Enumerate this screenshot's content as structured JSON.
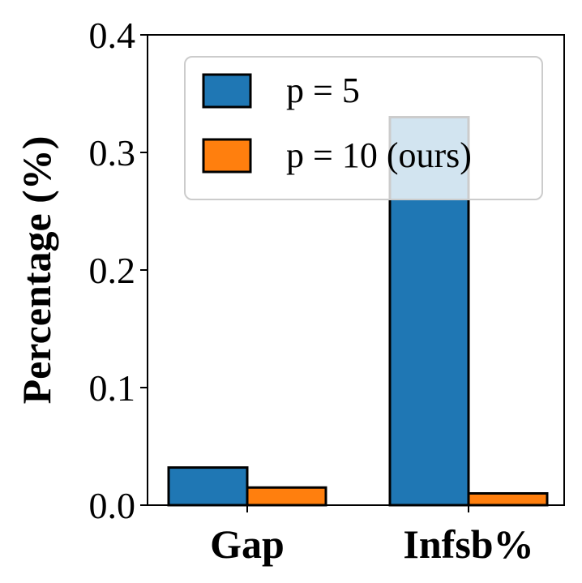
{
  "chart_data": {
    "type": "bar",
    "title": "",
    "xlabel": "",
    "ylabel": "Percentage (%)",
    "categories": [
      "Gap",
      "Infsb%"
    ],
    "series": [
      {
        "name": "p = 5",
        "color": "#1f77b4",
        "values": [
          0.032,
          0.33
        ]
      },
      {
        "name": "p = 10 (ours)",
        "color": "#ff7f0e",
        "values": [
          0.015,
          0.01
        ]
      }
    ],
    "ylim": [
      0.0,
      0.4
    ],
    "yticks": [
      "0.0",
      "0.1",
      "0.2",
      "0.3",
      "0.4"
    ],
    "grid": false,
    "legend_position": "top-right"
  }
}
